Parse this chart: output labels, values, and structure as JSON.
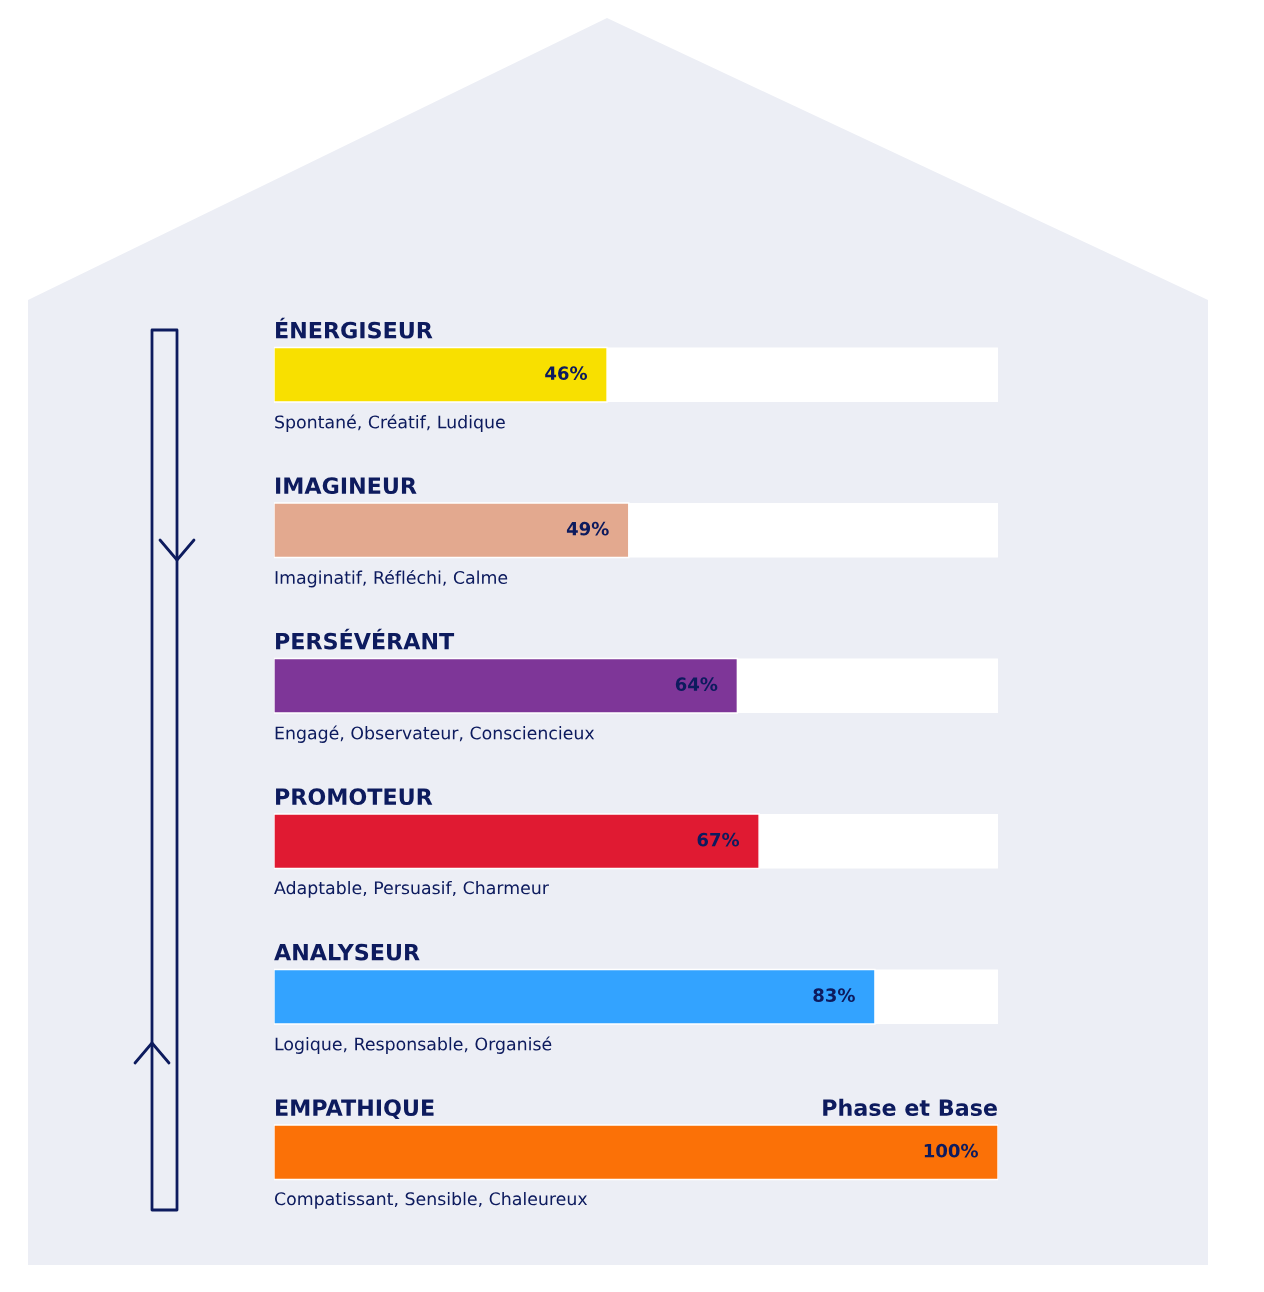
{
  "chart_data": {
    "type": "bar",
    "orientation": "horizontal",
    "categories": [
      "ÉNERGISEUR",
      "IMAGINEUR",
      "PERSÉVÉRANT",
      "PROMOTEUR",
      "ANALYSEUR",
      "EMPATHIQUE"
    ],
    "values": [
      46,
      49,
      64,
      67,
      83,
      100
    ],
    "colors": [
      "#f8e000",
      "#e3a98f",
      "#7e3698",
      "#e01a32",
      "#33a3ff",
      "#fb7107"
    ],
    "value_labels": [
      "46%",
      "49%",
      "64%",
      "67%",
      "83%",
      "100%"
    ],
    "xlim": [
      0,
      100
    ],
    "annotations": [
      "Spontané, Créatif, Ludique",
      "Imaginatif, Réfléchi, Calme",
      "Engagé, Observateur, Consciencieux",
      "Adaptable, Persuasif, Charmeur",
      "Logique, Responsable, Organisé",
      "Compatissant, Sensible, Chaleureux",
      {
        "text": "Phase et Base",
        "x": 100,
        "y": "EMPATHIQUE"
      }
    ],
    "legend": false
  }
}
